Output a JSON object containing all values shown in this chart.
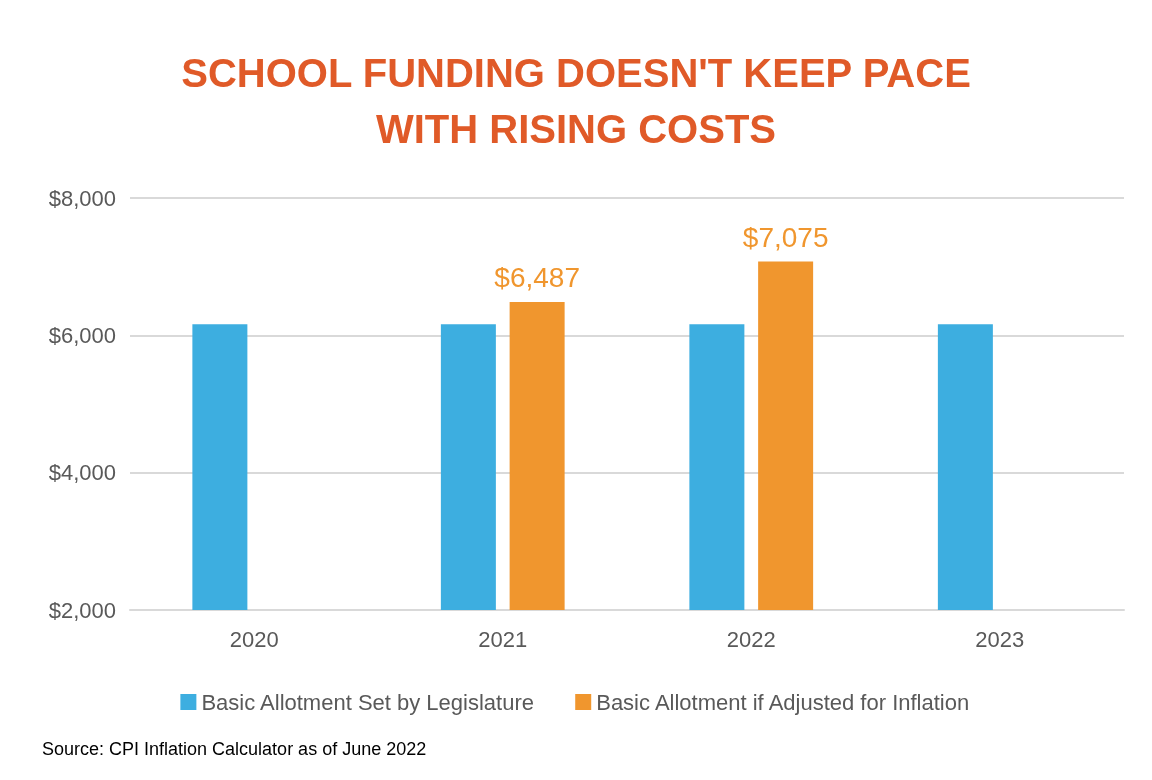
{
  "chart_data": {
    "type": "bar",
    "title": "SCHOOL FUNDING DOESN'T KEEP PACE\nWITH RISING COSTS",
    "categories": [
      "2020",
      "2021",
      "2022",
      "2023"
    ],
    "series": [
      {
        "name": "Basic Allotment Set by Legislature",
        "color": "#3daee0",
        "values": [
          6160,
          6160,
          6160,
          6160
        ]
      },
      {
        "name": "Basic Allotment if Adjusted for Inflation",
        "color": "#f0962e",
        "values": [
          null,
          6487,
          7075,
          null
        ],
        "value_labels": [
          null,
          "$6,487",
          "$7,075",
          null
        ]
      }
    ],
    "ylim": [
      2000,
      8000
    ],
    "yticks": [
      {
        "value": 2000,
        "label": "$2,000"
      },
      {
        "value": 4000,
        "label": "$4,000"
      },
      {
        "value": 6000,
        "label": "$6,000"
      },
      {
        "value": 8000,
        "label": "$8,000"
      }
    ],
    "grid": "y",
    "legend": "bottom",
    "annotations": [
      "Source: CPI Inflation Calculator as of June 2022"
    ]
  }
}
